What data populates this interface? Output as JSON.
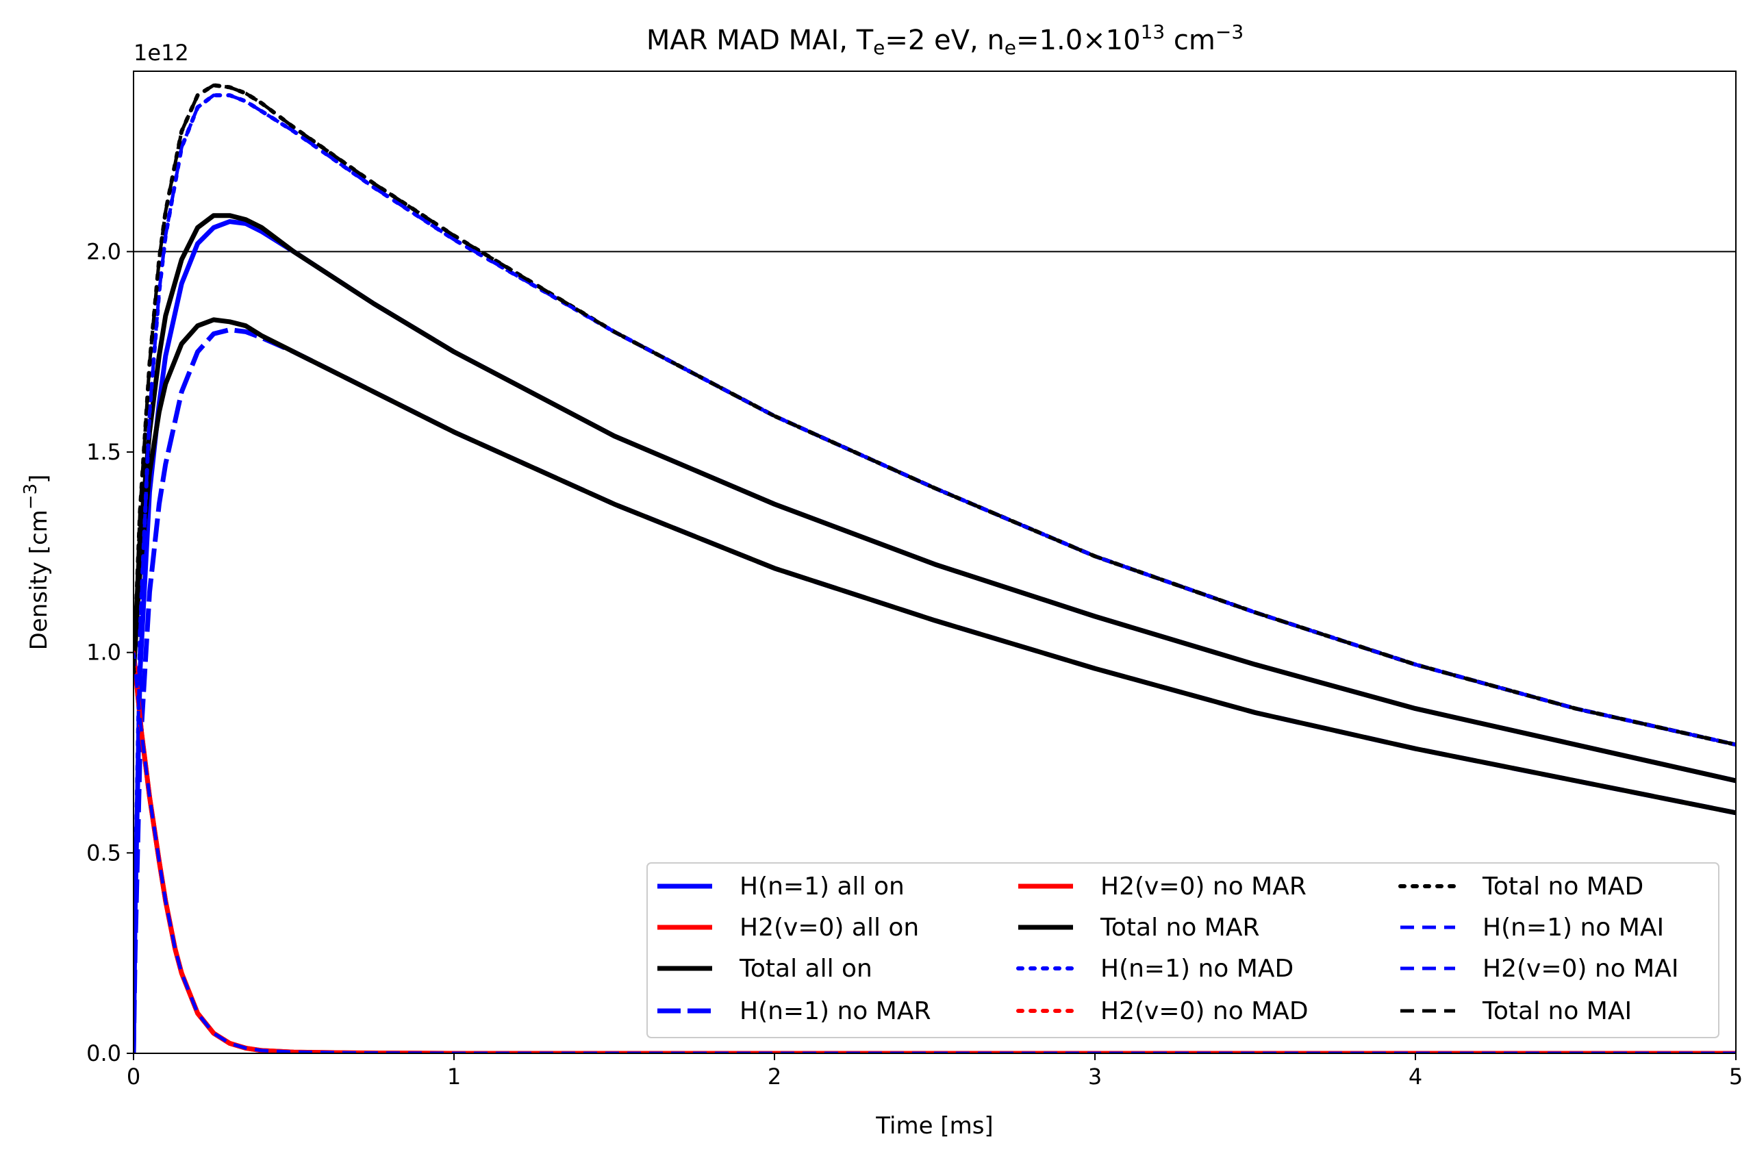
{
  "chart_data": {
    "type": "line",
    "title": {
      "base": "MAR MAD MAI,  T",
      "sub1": "e",
      "mid": "=2 eV, n",
      "sub2": "e",
      "mid2": "=1.0×10",
      "sup": "13",
      "tail": " cm",
      "sup2": "−3"
    },
    "xlabel": "Time [ms]",
    "ylabel": {
      "base": "Density [cm",
      "sup": "−3",
      "tail": "]"
    },
    "y_offset_label": "1e12",
    "xlim": [
      0,
      5
    ],
    "ylim": [
      0,
      2.45
    ],
    "y_units_multiplier": "1e12",
    "xticks": [
      "0",
      "1",
      "2",
      "3",
      "4",
      "5"
    ],
    "yticks": [
      "0.0",
      "0.5",
      "1.0",
      "1.5",
      "2.0"
    ],
    "reference_line_y": 2.0,
    "legend_location": "lower-right",
    "legend_columns": 3,
    "colors": {
      "blue": "#0000ff",
      "red": "#ff0000",
      "black": "#000000"
    },
    "series": [
      {
        "name": "H(n=1) all on",
        "color": "blue",
        "style": "solid",
        "values": [
          [
            0,
            0
          ],
          [
            0.005,
            0.35
          ],
          [
            0.02,
            0.95
          ],
          [
            0.05,
            1.4
          ],
          [
            0.08,
            1.62
          ],
          [
            0.1,
            1.74
          ],
          [
            0.15,
            1.92
          ],
          [
            0.2,
            2.02
          ],
          [
            0.25,
            2.06
          ],
          [
            0.3,
            2.075
          ],
          [
            0.35,
            2.07
          ],
          [
            0.4,
            2.05
          ],
          [
            0.5,
            2.0
          ],
          [
            0.75,
            1.87
          ],
          [
            1,
            1.75
          ],
          [
            1.5,
            1.54
          ],
          [
            2,
            1.37
          ],
          [
            2.5,
            1.22
          ],
          [
            3,
            1.09
          ],
          [
            3.5,
            0.97
          ],
          [
            4,
            0.86
          ],
          [
            4.5,
            0.77
          ],
          [
            5,
            0.68
          ]
        ]
      },
      {
        "name": "H2(v=0) all on",
        "color": "red",
        "style": "solid",
        "values": [
          [
            0,
            1.0
          ],
          [
            0.025,
            0.8
          ],
          [
            0.05,
            0.64
          ],
          [
            0.08,
            0.48
          ],
          [
            0.1,
            0.38
          ],
          [
            0.13,
            0.26
          ],
          [
            0.15,
            0.2
          ],
          [
            0.2,
            0.1
          ],
          [
            0.25,
            0.05
          ],
          [
            0.3,
            0.025
          ],
          [
            0.35,
            0.013
          ],
          [
            0.4,
            0.007
          ],
          [
            0.5,
            0.003
          ],
          [
            0.7,
            0.001
          ],
          [
            1,
            0.0
          ],
          [
            5,
            0.0
          ]
        ]
      },
      {
        "name": "Total all on",
        "color": "black",
        "style": "solid",
        "values": [
          [
            0,
            0.95
          ],
          [
            0.01,
            1.12
          ],
          [
            0.02,
            1.28
          ],
          [
            0.05,
            1.55
          ],
          [
            0.08,
            1.74
          ],
          [
            0.1,
            1.84
          ],
          [
            0.15,
            1.98
          ],
          [
            0.2,
            2.06
          ],
          [
            0.25,
            2.09
          ],
          [
            0.3,
            2.09
          ],
          [
            0.35,
            2.08
          ],
          [
            0.4,
            2.06
          ],
          [
            0.5,
            2.0
          ],
          [
            0.75,
            1.87
          ],
          [
            1,
            1.75
          ],
          [
            1.5,
            1.54
          ],
          [
            2,
            1.37
          ],
          [
            2.5,
            1.22
          ],
          [
            3,
            1.09
          ],
          [
            3.5,
            0.97
          ],
          [
            4,
            0.86
          ],
          [
            4.5,
            0.77
          ],
          [
            5,
            0.68
          ]
        ]
      },
      {
        "name": "H(n=1) no MAR",
        "color": "blue",
        "style": "longdash",
        "values": [
          [
            0,
            0
          ],
          [
            0.005,
            0.25
          ],
          [
            0.02,
            0.75
          ],
          [
            0.05,
            1.15
          ],
          [
            0.08,
            1.37
          ],
          [
            0.1,
            1.47
          ],
          [
            0.15,
            1.65
          ],
          [
            0.2,
            1.75
          ],
          [
            0.25,
            1.795
          ],
          [
            0.3,
            1.805
          ],
          [
            0.35,
            1.8
          ],
          [
            0.4,
            1.785
          ],
          [
            0.5,
            1.75
          ],
          [
            0.75,
            1.65
          ],
          [
            1,
            1.55
          ],
          [
            1.5,
            1.37
          ],
          [
            2,
            1.21
          ],
          [
            2.5,
            1.08
          ],
          [
            3,
            0.96
          ],
          [
            3.5,
            0.85
          ],
          [
            4,
            0.76
          ],
          [
            4.5,
            0.68
          ],
          [
            5,
            0.6
          ]
        ]
      },
      {
        "name": "H2(v=0) no MAR",
        "color": "red",
        "style": "solid",
        "values": [
          [
            0,
            1.0
          ],
          [
            0.025,
            0.8
          ],
          [
            0.05,
            0.64
          ],
          [
            0.08,
            0.48
          ],
          [
            0.1,
            0.38
          ],
          [
            0.13,
            0.26
          ],
          [
            0.15,
            0.2
          ],
          [
            0.2,
            0.1
          ],
          [
            0.25,
            0.05
          ],
          [
            0.3,
            0.025
          ],
          [
            0.35,
            0.013
          ],
          [
            0.4,
            0.007
          ],
          [
            0.5,
            0.003
          ],
          [
            0.7,
            0.001
          ],
          [
            1,
            0.0
          ],
          [
            5,
            0.0
          ]
        ]
      },
      {
        "name": "Total no MAR",
        "color": "black",
        "style": "solid",
        "values": [
          [
            0,
            0.95
          ],
          [
            0.01,
            1.08
          ],
          [
            0.02,
            1.2
          ],
          [
            0.05,
            1.45
          ],
          [
            0.08,
            1.6
          ],
          [
            0.1,
            1.67
          ],
          [
            0.15,
            1.77
          ],
          [
            0.2,
            1.815
          ],
          [
            0.25,
            1.83
          ],
          [
            0.3,
            1.825
          ],
          [
            0.35,
            1.815
          ],
          [
            0.4,
            1.79
          ],
          [
            0.5,
            1.75
          ],
          [
            0.75,
            1.65
          ],
          [
            1,
            1.55
          ],
          [
            1.5,
            1.37
          ],
          [
            2,
            1.21
          ],
          [
            2.5,
            1.08
          ],
          [
            3,
            0.96
          ],
          [
            3.5,
            0.85
          ],
          [
            4,
            0.76
          ],
          [
            4.5,
            0.68
          ],
          [
            5,
            0.6
          ]
        ]
      },
      {
        "name": "H(n=1) no MAD",
        "color": "blue",
        "style": "dotted",
        "values": [
          [
            0,
            0
          ],
          [
            0.005,
            0.4
          ],
          [
            0.02,
            1.05
          ],
          [
            0.05,
            1.6
          ],
          [
            0.08,
            1.9
          ],
          [
            0.1,
            2.04
          ],
          [
            0.15,
            2.26
          ],
          [
            0.2,
            2.36
          ],
          [
            0.25,
            2.39
          ],
          [
            0.3,
            2.39
          ],
          [
            0.35,
            2.375
          ],
          [
            0.4,
            2.35
          ],
          [
            0.5,
            2.3
          ],
          [
            0.75,
            2.16
          ],
          [
            1,
            2.03
          ],
          [
            1.5,
            1.8
          ],
          [
            2,
            1.59
          ],
          [
            2.5,
            1.41
          ],
          [
            3,
            1.24
          ],
          [
            3.5,
            1.1
          ],
          [
            4,
            0.97
          ],
          [
            4.5,
            0.86
          ],
          [
            5,
            0.77
          ]
        ]
      },
      {
        "name": "H2(v=0) no MAD",
        "color": "red",
        "style": "dotted",
        "values": [
          [
            0,
            1.0
          ],
          [
            0.025,
            0.8
          ],
          [
            0.05,
            0.64
          ],
          [
            0.08,
            0.48
          ],
          [
            0.1,
            0.38
          ],
          [
            0.13,
            0.26
          ],
          [
            0.15,
            0.2
          ],
          [
            0.2,
            0.1
          ],
          [
            0.25,
            0.05
          ],
          [
            0.3,
            0.025
          ],
          [
            0.35,
            0.013
          ],
          [
            0.4,
            0.007
          ],
          [
            0.5,
            0.003
          ],
          [
            0.7,
            0.001
          ],
          [
            1,
            0.0
          ],
          [
            5,
            0.0
          ]
        ]
      },
      {
        "name": "Total no MAD",
        "color": "black",
        "style": "dotted",
        "values": [
          [
            0,
            0.95
          ],
          [
            0.01,
            1.15
          ],
          [
            0.02,
            1.35
          ],
          [
            0.05,
            1.72
          ],
          [
            0.08,
            1.98
          ],
          [
            0.1,
            2.1
          ],
          [
            0.15,
            2.3
          ],
          [
            0.2,
            2.39
          ],
          [
            0.25,
            2.415
          ],
          [
            0.3,
            2.41
          ],
          [
            0.35,
            2.395
          ],
          [
            0.4,
            2.37
          ],
          [
            0.5,
            2.31
          ],
          [
            0.75,
            2.17
          ],
          [
            1,
            2.04
          ],
          [
            1.5,
            1.8
          ],
          [
            2,
            1.59
          ],
          [
            2.5,
            1.41
          ],
          [
            3,
            1.24
          ],
          [
            3.5,
            1.1
          ],
          [
            4,
            0.97
          ],
          [
            4.5,
            0.86
          ],
          [
            5,
            0.77
          ]
        ]
      },
      {
        "name": "H(n=1) no MAI",
        "color": "blue",
        "style": "dashed",
        "values": [
          [
            0,
            0
          ],
          [
            0.005,
            0.4
          ],
          [
            0.02,
            1.05
          ],
          [
            0.05,
            1.6
          ],
          [
            0.08,
            1.9
          ],
          [
            0.1,
            2.04
          ],
          [
            0.15,
            2.26
          ],
          [
            0.2,
            2.36
          ],
          [
            0.25,
            2.39
          ],
          [
            0.3,
            2.39
          ],
          [
            0.35,
            2.375
          ],
          [
            0.4,
            2.35
          ],
          [
            0.5,
            2.3
          ],
          [
            0.75,
            2.16
          ],
          [
            1,
            2.03
          ],
          [
            1.5,
            1.8
          ],
          [
            2,
            1.59
          ],
          [
            2.5,
            1.41
          ],
          [
            3,
            1.24
          ],
          [
            3.5,
            1.1
          ],
          [
            4,
            0.97
          ],
          [
            4.5,
            0.86
          ],
          [
            5,
            0.77
          ]
        ]
      },
      {
        "name": "H2(v=0) no MAI",
        "color": "blue",
        "style": "dashed",
        "values": [
          [
            0,
            1.0
          ],
          [
            0.025,
            0.8
          ],
          [
            0.05,
            0.64
          ],
          [
            0.08,
            0.48
          ],
          [
            0.1,
            0.38
          ],
          [
            0.13,
            0.26
          ],
          [
            0.15,
            0.2
          ],
          [
            0.2,
            0.1
          ],
          [
            0.25,
            0.05
          ],
          [
            0.3,
            0.025
          ],
          [
            0.35,
            0.013
          ],
          [
            0.4,
            0.007
          ],
          [
            0.5,
            0.003
          ],
          [
            0.7,
            0.001
          ],
          [
            1,
            0.0
          ],
          [
            5,
            0.0
          ]
        ]
      },
      {
        "name": "Total no MAI",
        "color": "black",
        "style": "dashed",
        "values": [
          [
            0,
            0.95
          ],
          [
            0.01,
            1.15
          ],
          [
            0.02,
            1.35
          ],
          [
            0.05,
            1.72
          ],
          [
            0.08,
            1.98
          ],
          [
            0.1,
            2.1
          ],
          [
            0.15,
            2.3
          ],
          [
            0.2,
            2.39
          ],
          [
            0.25,
            2.415
          ],
          [
            0.3,
            2.41
          ],
          [
            0.35,
            2.395
          ],
          [
            0.4,
            2.37
          ],
          [
            0.5,
            2.31
          ],
          [
            0.75,
            2.17
          ],
          [
            1,
            2.04
          ],
          [
            1.5,
            1.8
          ],
          [
            2,
            1.59
          ],
          [
            2.5,
            1.41
          ],
          [
            3,
            1.24
          ],
          [
            3.5,
            1.1
          ],
          [
            4,
            0.97
          ],
          [
            4.5,
            0.86
          ],
          [
            5,
            0.77
          ]
        ]
      }
    ]
  }
}
